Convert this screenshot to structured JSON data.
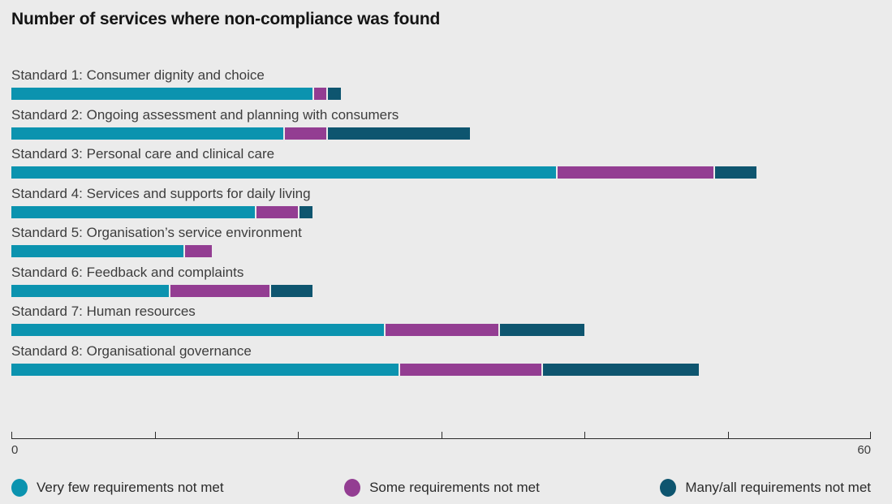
{
  "title": "Number of services where non-compliance was found",
  "colors": {
    "background": "#ebebeb",
    "very_few": "#0b93af",
    "some": "#933d92",
    "many_all": "#0e556f",
    "axis": "#2b2b2b",
    "label_text": "#3d3d3d",
    "title_text": "#141414"
  },
  "chart_data": {
    "type": "bar",
    "orientation": "horizontal",
    "stacked": true,
    "title": "Number of services where non-compliance was found",
    "xlabel": "",
    "ylabel": "",
    "xlim": [
      0,
      60
    ],
    "x_ticks": [
      0,
      10,
      20,
      30,
      40,
      50,
      60
    ],
    "x_tick_labels_visible": [
      "0",
      "60"
    ],
    "grid": false,
    "legend_position": "bottom",
    "categories": [
      "Standard 1: Consumer dignity and choice",
      "Standard 2: Ongoing assessment and planning with consumers",
      "Standard 3: Personal care and clinical care",
      "Standard 4: Services and supports for daily living",
      "Standard 5: Organisation’s service environment",
      "Standard 6: Feedback and complaints",
      "Standard 7: Human resources",
      "Standard 8: Organisational governance"
    ],
    "series": [
      {
        "name": "Very few requirements not met",
        "key": "very-few",
        "color": "#0b93af",
        "values": [
          21,
          19,
          38,
          17,
          12,
          11,
          26,
          27
        ]
      },
      {
        "name": "Some requirements not met",
        "key": "some",
        "color": "#933d92",
        "values": [
          1,
          3,
          11,
          3,
          2,
          7,
          8,
          10
        ]
      },
      {
        "name": "Many/all requirements not met",
        "key": "many-all",
        "color": "#0e556f",
        "values": [
          1,
          10,
          3,
          1,
          0,
          3,
          6,
          11
        ]
      }
    ]
  },
  "axis": {
    "min_label": "0",
    "max_label": "60"
  },
  "legend": {
    "items": [
      {
        "key": "very-few",
        "color": "#0b93af",
        "label": "Very few requirements not met"
      },
      {
        "key": "some",
        "color": "#933d92",
        "label": "Some requirements not met"
      },
      {
        "key": "many-all",
        "color": "#0e556f",
        "label": "Many/all requirements not met"
      }
    ]
  }
}
